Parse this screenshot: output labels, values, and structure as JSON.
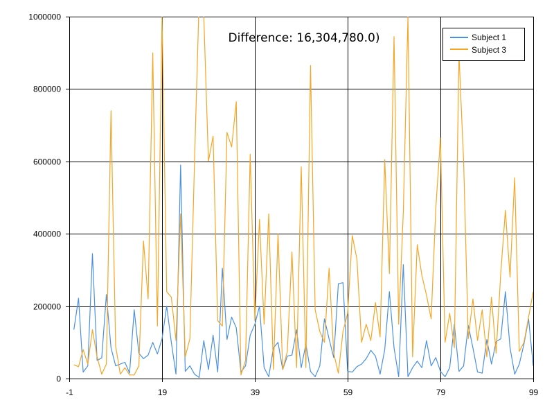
{
  "chart_data": {
    "type": "line",
    "title": "Difference: 16,304,780.0)",
    "xlabel": "",
    "ylabel": "",
    "xlim": [
      -1,
      99
    ],
    "ylim": [
      0,
      1000000
    ],
    "x_ticks": [
      -1,
      19,
      39,
      59,
      79,
      99
    ],
    "y_ticks": [
      0,
      200000,
      400000,
      600000,
      800000,
      1000000
    ],
    "grid": true,
    "legend_position": "top-right",
    "series": [
      {
        "name": "Subject 1",
        "color": "#4a90e2",
        "values": [
          135000,
          222000,
          18000,
          35000,
          345000,
          50000,
          57000,
          232000,
          85000,
          35000,
          40000,
          45000,
          15000,
          190000,
          70000,
          55000,
          65000,
          100000,
          68000,
          110000,
          200000,
          100000,
          12000,
          590000,
          20000,
          35000,
          12000,
          3000,
          105000,
          25000,
          120000,
          18000,
          305000,
          108000,
          170000,
          140000,
          18000,
          35000,
          120000,
          150000,
          200000,
          30000,
          5000,
          85000,
          100000,
          25000,
          62000,
          65000,
          135000,
          30000,
          95000,
          20000,
          5000,
          35000,
          165000,
          110000,
          58000,
          262000,
          265000,
          20000,
          18000,
          33000,
          40000,
          55000,
          78000,
          62000,
          12000,
          80000,
          240000,
          85000,
          5000,
          315000,
          5000,
          30000,
          48000,
          30000,
          105000,
          35000,
          58000,
          20000,
          5000,
          30000,
          150000,
          20000,
          35000,
          147000,
          85000,
          18000,
          15000,
          108000,
          40000,
          102000,
          110000,
          240000,
          85000,
          12000,
          40000,
          95000,
          165000,
          35000
        ]
      },
      {
        "name": "Subject 3",
        "color": "#f5a623",
        "values": [
          38000,
          33000,
          80000,
          40000,
          135000,
          60000,
          12000,
          40000,
          740000,
          90000,
          12000,
          30000,
          10000,
          10000,
          35000,
          380000,
          220000,
          900000,
          145000,
          1000000,
          240000,
          225000,
          105000,
          455000,
          60000,
          110000,
          600000,
          1050000,
          1000000,
          600000,
          670000,
          160000,
          145000,
          680000,
          640000,
          765000,
          10000,
          50000,
          620000,
          160000,
          440000,
          150000,
          455000,
          25000,
          400000,
          25000,
          75000,
          350000,
          30000,
          585000,
          30000,
          865000,
          190000,
          130000,
          100000,
          305000,
          70000,
          15000,
          130000,
          180000,
          395000,
          330000,
          100000,
          150000,
          105000,
          210000,
          115000,
          605000,
          290000,
          945000,
          150000,
          460000,
          1000000,
          60000,
          370000,
          285000,
          230000,
          165000,
          470000,
          665000,
          100000,
          180000,
          85000,
          895000,
          600000,
          110000,
          220000,
          105000,
          190000,
          60000,
          225000,
          70000,
          290000,
          465000,
          280000,
          555000,
          75000,
          100000,
          170000,
          240000
        ]
      }
    ]
  }
}
